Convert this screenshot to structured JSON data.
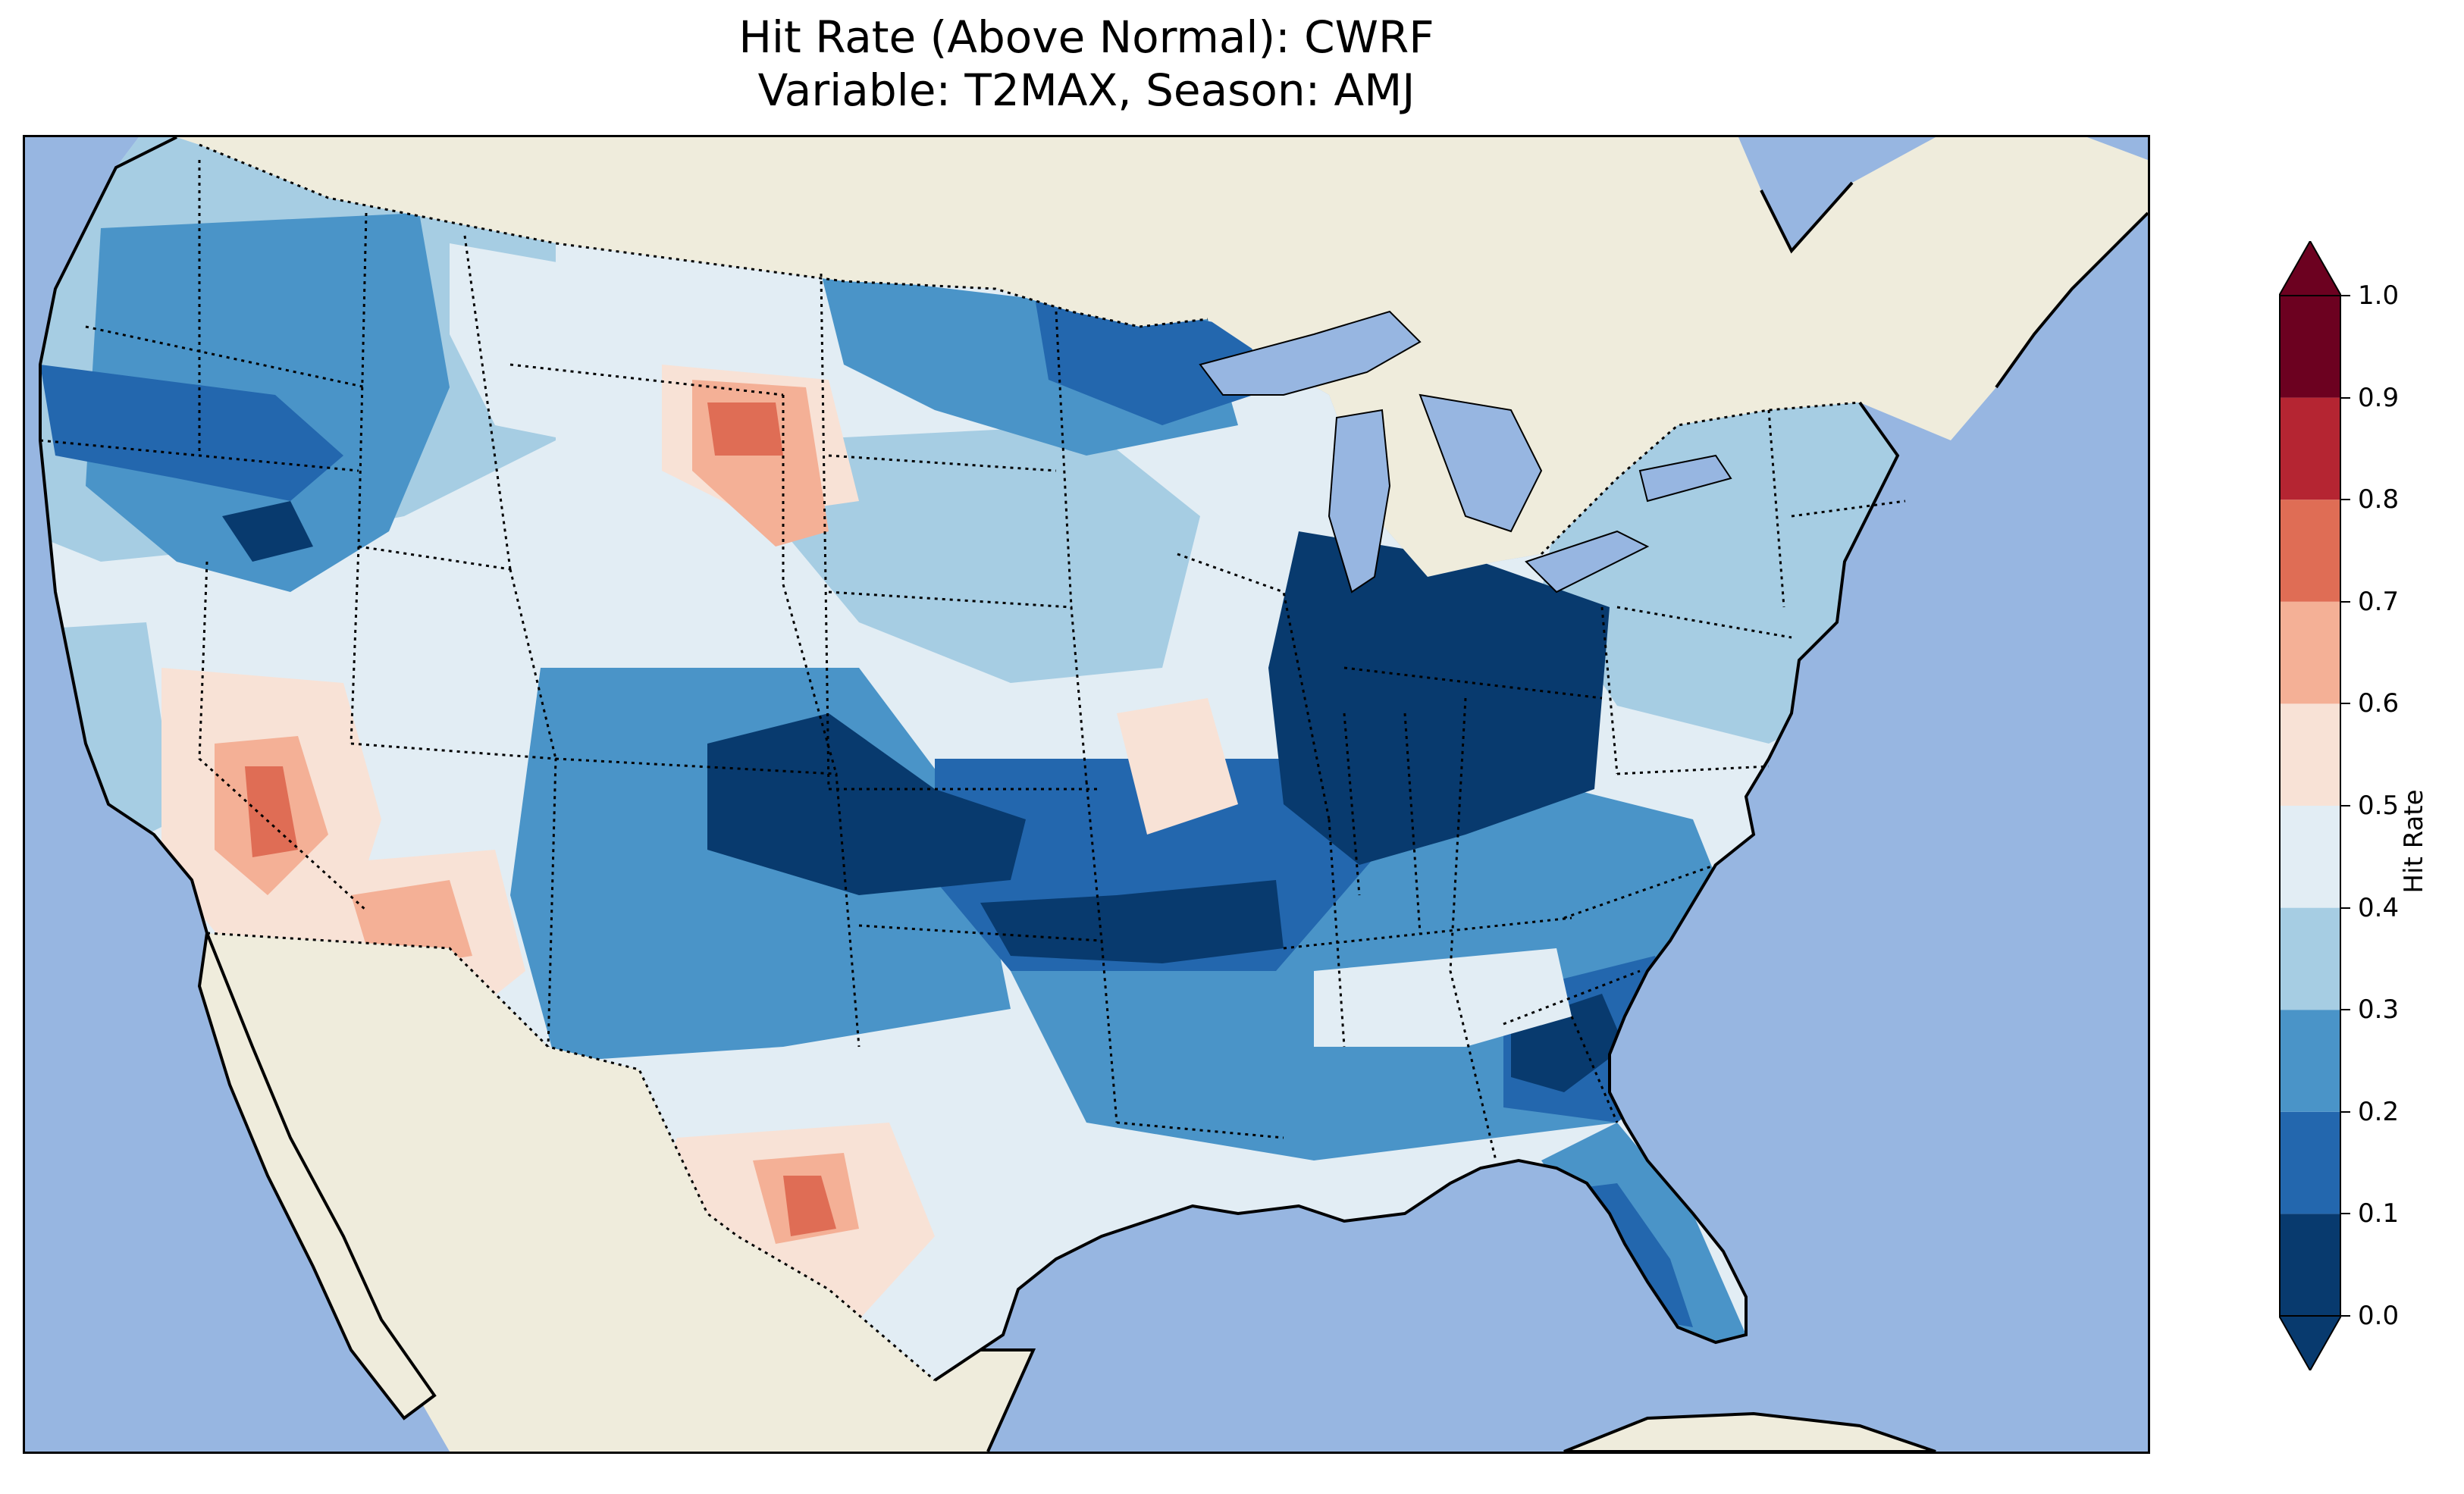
{
  "figure": {
    "title_line1": "Hit Rate (Above Normal): CWRF",
    "title_line2": "Variable: T2MAX, Season: AMJ"
  },
  "map": {
    "colors": {
      "ocean": "#97b6e1",
      "land": "#efecdc",
      "lakes": "#97b6e1",
      "coastline": "#000000",
      "borders": "#000000"
    }
  },
  "colorbar": {
    "label": "Hit Rate",
    "ticks": [
      "0.0",
      "0.1",
      "0.2",
      "0.3",
      "0.4",
      "0.5",
      "0.6",
      "0.7",
      "0.8",
      "0.9",
      "1.0"
    ],
    "bin_colors": [
      "#083a6e",
      "#2367ae",
      "#4a94c8",
      "#a6cde3",
      "#e2edf4",
      "#f8e2d6",
      "#f4b096",
      "#df6d55",
      "#b52532",
      "#6c0120"
    ],
    "under_color": "#083a6e",
    "over_color": "#6c0120",
    "extend": "both"
  }
}
